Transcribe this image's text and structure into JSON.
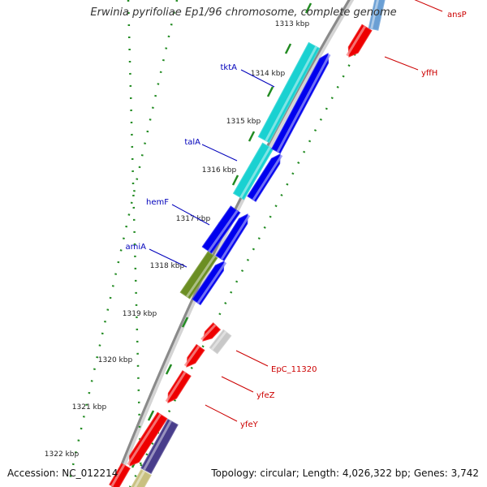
{
  "title": "Erwinia pyrifoliae Ep1/96 chromosome, complete genome",
  "accession": "Accession: NC_012214",
  "summary": "Topology: circular; Length: 4,026,322 bp; Genes: 3,742",
  "ticks": [
    {
      "label": "1313 kbp"
    },
    {
      "label": "1314 kbp"
    },
    {
      "label": "1315 kbp"
    },
    {
      "label": "1316 kbp"
    },
    {
      "label": "1317 kbp"
    },
    {
      "label": "1318 kbp"
    },
    {
      "label": "1319 kbp"
    },
    {
      "label": "1320 kbp"
    },
    {
      "label": "1321 kbp"
    },
    {
      "label": "1322 kbp"
    }
  ],
  "gene_labels": [
    {
      "name": "ansP",
      "color": "#cc0000"
    },
    {
      "name": "yffH",
      "color": "#cc0000"
    },
    {
      "name": "tktA",
      "color": "#0000bb"
    },
    {
      "name": "talA",
      "color": "#0000bb"
    },
    {
      "name": "hemF",
      "color": "#0000bb"
    },
    {
      "name": "amiA",
      "color": "#0000bb"
    },
    {
      "name": "EpC_11320",
      "color": "#cc0000"
    },
    {
      "name": "yfeZ",
      "color": "#cc0000"
    },
    {
      "name": "yfeY",
      "color": "#cc0000"
    }
  ],
  "colors": {
    "backbone": "#8a8a8a",
    "dots": "#228b22",
    "red_feature": "#ee0000",
    "blue_feature": "#0000ee",
    "cyan_feature": "#19d1d1",
    "olive_feature": "#6b8e23",
    "gray_feature": "#c8c8c8",
    "navy_feature": "#483d8b",
    "khaki_feature": "#c8c080",
    "steel_feature": "#6a9fd4"
  }
}
